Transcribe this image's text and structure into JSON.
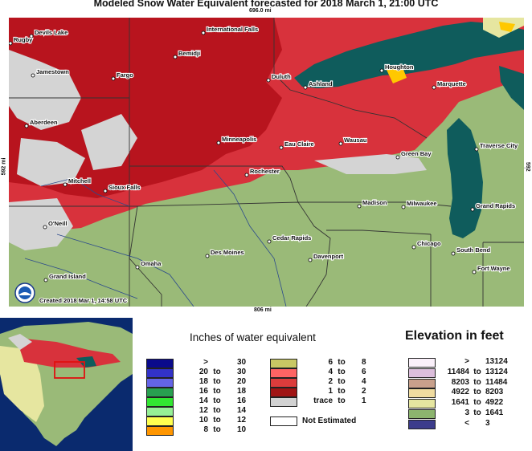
{
  "title": "Modeled Snow Water Equivalent forecasted for 2018 March 1, 21:00 UTC",
  "dimensions": {
    "top": "696.0 mi",
    "bottom": "806 mi",
    "left": "592 mi",
    "right": "592 mi"
  },
  "credit": "Created 2018 Mar 1, 14:58 UTC",
  "logo_icon": "noaa-logo-icon",
  "cities": [
    "Devils Lake",
    "Rugby",
    "International Falls",
    "Bemidji",
    "Jamestown",
    "Fargo",
    "Duluth",
    "Ashland",
    "Houghton",
    "Marquette",
    "Aberdeen",
    "Minneapolis",
    "Eau Claire",
    "Wausau",
    "Traverse City",
    "Green Bay",
    "Mitchell",
    "Sioux Falls",
    "Rochester",
    "Madison",
    "Milwaukee",
    "Grand Rapids",
    "O'Neill",
    "Cedar Rapids",
    "Chicago",
    "South Bend",
    "Des Moines",
    "Davenport",
    "Omaha",
    "Grand Island",
    "Fort Wayne"
  ],
  "swe_legend": {
    "title": "Inches of water equivalent",
    "left": [
      {
        "lo": ">",
        "to": "",
        "hi": "30",
        "color": "#0a0a8c"
      },
      {
        "lo": "20",
        "to": "to",
        "hi": "30",
        "color": "#3232c8"
      },
      {
        "lo": "18",
        "to": "to",
        "hi": "20",
        "color": "#6464e6"
      },
      {
        "lo": "16",
        "to": "to",
        "hi": "18",
        "color": "#28a050"
      },
      {
        "lo": "14",
        "to": "to",
        "hi": "16",
        "color": "#32e632"
      },
      {
        "lo": "12",
        "to": "to",
        "hi": "14",
        "color": "#96f096"
      },
      {
        "lo": "10",
        "to": "to",
        "hi": "12",
        "color": "#ffff50"
      },
      {
        "lo": "8",
        "to": "to",
        "hi": "10",
        "color": "#ff9600"
      }
    ],
    "right": [
      {
        "lo": "6",
        "to": "to",
        "hi": "8",
        "color": "#c8c864"
      },
      {
        "lo": "4",
        "to": "to",
        "hi": "6",
        "color": "#ff6464"
      },
      {
        "lo": "2",
        "to": "to",
        "hi": "4",
        "color": "#dc3c3c"
      },
      {
        "lo": "1",
        "to": "to",
        "hi": "2",
        "color": "#a01414"
      },
      {
        "lo": "trace",
        "to": "to",
        "hi": "1",
        "color": "#d2d2d2"
      }
    ],
    "not_estimated": "Not Estimated"
  },
  "elevation_legend": {
    "title": "Elevation in feet",
    "rows": [
      {
        "lo": ">",
        "to": "",
        "hi": "13124",
        "color": "#faf0fa"
      },
      {
        "lo": "11484",
        "to": "to",
        "hi": "13124",
        "color": "#dcbedc"
      },
      {
        "lo": "8203",
        "to": "to",
        "hi": "11484",
        "color": "#c8a08c"
      },
      {
        "lo": "4922",
        "to": "to",
        "hi": "8203",
        "color": "#f0dca0"
      },
      {
        "lo": "1641",
        "to": "to",
        "hi": "4922",
        "color": "#e6e6a0"
      },
      {
        "lo": "3",
        "to": "to",
        "hi": "1641",
        "color": "#8cb46e"
      },
      {
        "lo": "<",
        "to": "",
        "hi": "3",
        "color": "#3c3c8c"
      }
    ]
  }
}
